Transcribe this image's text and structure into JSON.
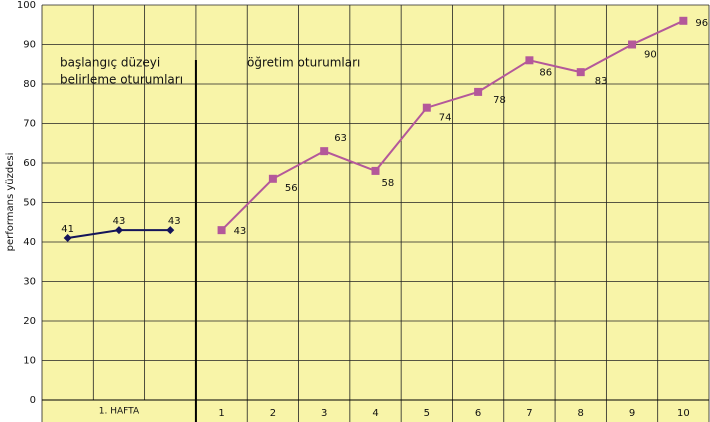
{
  "chart_data": {
    "type": "line",
    "ylabel": "performans yüzdesi",
    "categories": [
      null,
      null,
      null,
      "1",
      "2",
      "3",
      "4",
      "5",
      "6",
      "7",
      "8",
      "9",
      "10"
    ],
    "group_label": "1. HAFTA",
    "annotations": [
      [
        "başlangıç düzeyi",
        "belirleme oturumları"
      ],
      [
        "öğretim oturumları"
      ]
    ],
    "series": [
      {
        "color": "#14145a",
        "marker": "diamond",
        "values": [
          41,
          43,
          43,
          null,
          null,
          null,
          null,
          null,
          null,
          null,
          null,
          null,
          null
        ]
      },
      {
        "color": "#b4589a",
        "marker": "square",
        "values": [
          null,
          null,
          null,
          43,
          56,
          63,
          58,
          74,
          78,
          86,
          83,
          90,
          96
        ]
      }
    ],
    "ylim": [
      0,
      100
    ],
    "yticks": [
      0,
      10,
      20,
      30,
      40,
      50,
      60,
      70,
      80,
      90,
      100
    ],
    "grid": true
  }
}
